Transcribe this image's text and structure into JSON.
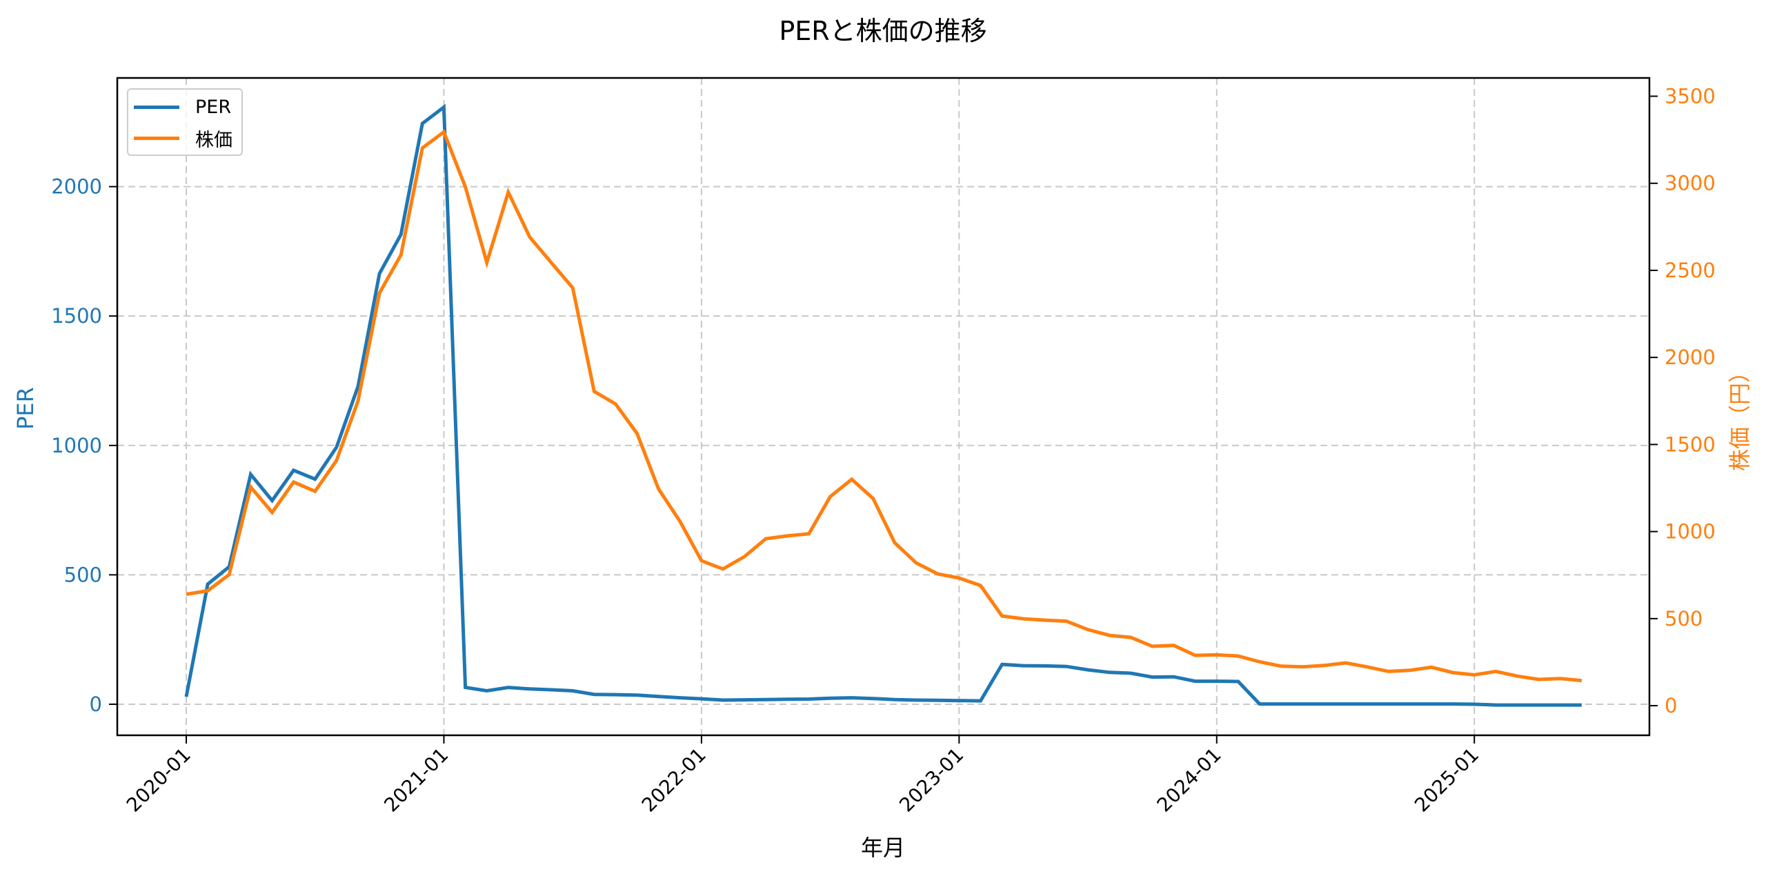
{
  "chart": {
    "title": "PERと株価の推移",
    "xlabel": "年月",
    "ylabel_left": "PER",
    "ylabel_right": "株価（円）",
    "legend": [
      {
        "label": "PER",
        "color": "#1f77b4"
      },
      {
        "label": "株価",
        "color": "#ff7f0e"
      }
    ]
  },
  "colors": {
    "per": "#1f77b4",
    "price": "#ff7f0e",
    "grid": "#c8c8c8",
    "axis": "#000000"
  },
  "chart_data": {
    "type": "line",
    "title": "PERと株価の推移",
    "xlabel": "年月",
    "ylabel": "PER",
    "ylabel_right": "株価（円）",
    "x_ticks": [
      "2020-01",
      "2021-01",
      "2022-01",
      "2023-01",
      "2024-01",
      "2025-01"
    ],
    "y_ticks_left": [
      0,
      500,
      1000,
      1500,
      2000
    ],
    "y_ticks_right": [
      0,
      500,
      1000,
      1500,
      2000,
      2500,
      3000,
      3500
    ],
    "ylim_left": [
      -120,
      2420
    ],
    "ylim_right": [
      -170,
      3605
    ],
    "grid": true,
    "legend_position": "upper left",
    "x": [
      "2020-01",
      "2020-02",
      "2020-03",
      "2020-04",
      "2020-05",
      "2020-06",
      "2020-07",
      "2020-08",
      "2020-09",
      "2020-10",
      "2020-11",
      "2020-12",
      "2021-01",
      "2021-02",
      "2021-03",
      "2021-04",
      "2021-05",
      "2021-06",
      "2021-07",
      "2021-08",
      "2021-09",
      "2021-10",
      "2021-11",
      "2021-12",
      "2022-01",
      "2022-02",
      "2022-03",
      "2022-04",
      "2022-05",
      "2022-06",
      "2022-07",
      "2022-08",
      "2022-09",
      "2022-10",
      "2022-11",
      "2022-12",
      "2023-01",
      "2023-02",
      "2023-03",
      "2023-04",
      "2023-05",
      "2023-06",
      "2023-07",
      "2023-08",
      "2023-09",
      "2023-10",
      "2023-11",
      "2023-12",
      "2024-01",
      "2024-02",
      "2024-03",
      "2024-04",
      "2024-05",
      "2024-06",
      "2024-07",
      "2024-08",
      "2024-09",
      "2024-10",
      "2024-11",
      "2024-12",
      "2025-01",
      "2025-02",
      "2025-03",
      "2025-04",
      "2025-05",
      "2025-06"
    ],
    "series": [
      {
        "name": "PER",
        "axis": "left",
        "values": [
          29,
          464,
          531,
          888,
          787,
          904,
          870,
          993,
          1228,
          1664,
          1815,
          2244,
          2307,
          65,
          52,
          65,
          59,
          56,
          52,
          38,
          37,
          35,
          30,
          25,
          21,
          16,
          17,
          18,
          19,
          20,
          23,
          25,
          22,
          18,
          16,
          15,
          14,
          13,
          154,
          149,
          148,
          146,
          133,
          123,
          120,
          105,
          106,
          89,
          89,
          88,
          1,
          1,
          1,
          1,
          1,
          1,
          1,
          1,
          1,
          1,
          0,
          -3,
          -3,
          -3,
          -3,
          -3
        ]
      },
      {
        "name": "株価",
        "axis": "right",
        "values": [
          640,
          660,
          753,
          1256,
          1110,
          1284,
          1231,
          1408,
          1750,
          2370,
          2588,
          3203,
          3295,
          2979,
          2545,
          2949,
          2691,
          2545,
          2400,
          1805,
          1732,
          1563,
          1245,
          1058,
          832,
          785,
          856,
          959,
          975,
          987,
          1201,
          1300,
          1189,
          935,
          820,
          757,
          733,
          690,
          515,
          499,
          491,
          485,
          437,
          404,
          392,
          341,
          346,
          289,
          292,
          285,
          252,
          227,
          223,
          231,
          246,
          223,
          197,
          203,
          221,
          190,
          177,
          197,
          170,
          151,
          156,
          144
        ]
      }
    ]
  }
}
